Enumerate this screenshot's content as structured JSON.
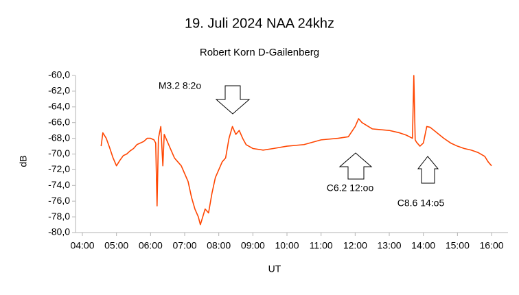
{
  "chart_data": {
    "type": "line",
    "title": "19. Juli 2024  NAA 24khz",
    "subtitle": "Robert Korn  D-Gailenberg",
    "x_label": "UT",
    "y_label": "dB",
    "annotations": [
      "M3.2  8:2o",
      "C6.2  12:oo",
      "C8.6  14:o5"
    ],
    "x": [
      4.55,
      4.6,
      4.7,
      4.8,
      4.9,
      5.0,
      5.1,
      5.2,
      5.3,
      5.4,
      5.5,
      5.6,
      5.8,
      5.9,
      6.0,
      6.1,
      6.15,
      6.19,
      6.23,
      6.3,
      6.36,
      6.4,
      6.5,
      6.6,
      6.7,
      6.9,
      7.0,
      7.1,
      7.2,
      7.3,
      7.4,
      7.46,
      7.6,
      7.7,
      7.8,
      7.9,
      8.0,
      8.1,
      8.2,
      8.3,
      8.4,
      8.5,
      8.6,
      8.7,
      8.8,
      9.0,
      9.3,
      9.6,
      10.0,
      10.5,
      11.0,
      11.5,
      11.8,
      12.0,
      12.1,
      12.2,
      12.5,
      13.0,
      13.3,
      13.5,
      13.68,
      13.72,
      13.76,
      13.8,
      13.9,
      14.0,
      14.1,
      14.2,
      14.4,
      14.6,
      14.8,
      15.0,
      15.2,
      15.4,
      15.6,
      15.8,
      15.9,
      16.0
    ],
    "series": [
      {
        "name": "NAA 24khz",
        "color": "#ff4500",
        "values": [
          -69.0,
          -67.3,
          -68.0,
          -69.2,
          -70.5,
          -71.5,
          -70.8,
          -70.2,
          -70.0,
          -69.6,
          -69.3,
          -68.8,
          -68.4,
          -68.0,
          -68.0,
          -68.2,
          -68.6,
          -76.6,
          -68.0,
          -66.5,
          -71.5,
          -67.5,
          -68.5,
          -69.5,
          -70.5,
          -71.5,
          -72.5,
          -73.5,
          -75.5,
          -77.0,
          -78.0,
          -79.0,
          -77.0,
          -77.5,
          -75.0,
          -73.0,
          -72.0,
          -71.0,
          -70.5,
          -68.0,
          -66.5,
          -67.5,
          -67.0,
          -68.0,
          -68.8,
          -69.3,
          -69.5,
          -69.3,
          -69.0,
          -68.8,
          -68.2,
          -68.0,
          -67.8,
          -66.5,
          -65.5,
          -66.0,
          -66.8,
          -67.0,
          -67.3,
          -67.6,
          -68.0,
          -60.0,
          -68.2,
          -68.5,
          -69.0,
          -68.6,
          -66.5,
          -66.6,
          -67.3,
          -68.0,
          -68.6,
          -69.0,
          -69.3,
          -69.5,
          -69.8,
          -70.3,
          -71.0,
          -71.5
        ]
      }
    ],
    "xlim": [
      3.8,
      16.5
    ],
    "xticks": [
      {
        "value": 4,
        "label": "04:00"
      },
      {
        "value": 5,
        "label": "05:00"
      },
      {
        "value": 6,
        "label": "06:00"
      },
      {
        "value": 7,
        "label": "07:00"
      },
      {
        "value": 8,
        "label": "08:00"
      },
      {
        "value": 9,
        "label": "09:00"
      },
      {
        "value": 10,
        "label": "10:00"
      },
      {
        "value": 11,
        "label": "11:00"
      },
      {
        "value": 12,
        "label": "12:00"
      },
      {
        "value": 13,
        "label": "13:00"
      },
      {
        "value": 14,
        "label": "14:00"
      },
      {
        "value": 15,
        "label": "15:00"
      },
      {
        "value": 16,
        "label": "16:00"
      }
    ],
    "ylim": [
      -80,
      -60
    ],
    "yticks": [
      {
        "value": -60,
        "label": "-60,0"
      },
      {
        "value": -62,
        "label": "-62,0"
      },
      {
        "value": -64,
        "label": "-64,0"
      },
      {
        "value": -66,
        "label": "-66,0"
      },
      {
        "value": -68,
        "label": "-68,0"
      },
      {
        "value": -70,
        "label": "-70,0"
      },
      {
        "value": -72,
        "label": "-72,0"
      },
      {
        "value": -74,
        "label": "-74,0"
      },
      {
        "value": -76,
        "label": "-76,0"
      },
      {
        "value": -78,
        "label": "-78,0"
      },
      {
        "value": -80,
        "label": "-80,0"
      }
    ],
    "grid": false
  }
}
